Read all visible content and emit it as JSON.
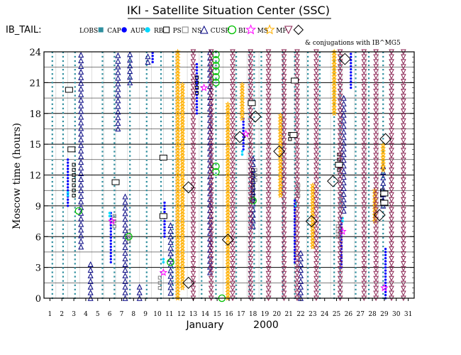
{
  "header": {
    "title": "IKI - Satellite Situation Center (SSC)",
    "region_label": "IB_TAIL:",
    "conjugation_note": "& conjugations with IB^MG5"
  },
  "legend": [
    {
      "label": "LOBS",
      "symbol": "square",
      "color": "#2f8f9f"
    },
    {
      "label": "CAP",
      "symbol": "dot",
      "color": "#0000ff"
    },
    {
      "label": "AUP",
      "symbol": "dot",
      "color": "#00d8ff"
    },
    {
      "label": "RB",
      "symbol": "square-open",
      "color": "#000000"
    },
    {
      "label": "PS",
      "symbol": "square-open",
      "color": "#808080"
    },
    {
      "label": "NS",
      "symbol": "triangle",
      "color": "#000080"
    },
    {
      "label": "CUSP",
      "symbol": "circle",
      "color": "#00c000"
    },
    {
      "label": "BL",
      "symbol": "star",
      "color": "#ff00ff"
    },
    {
      "label": "MS",
      "symbol": "star",
      "color": "#ffb000"
    },
    {
      "label": "MP",
      "symbol": "triangle-down",
      "color": "#8b2252"
    },
    {
      "label": "",
      "symbol": "diamond",
      "color": "#000000"
    }
  ],
  "chart_data": {
    "type": "scatter",
    "title": "IKI - Satellite Situation Center (SSC)",
    "xlabel": "January",
    "xlabel_year": "2000",
    "ylabel": "Moscow time (hours)",
    "xlim": [
      1,
      31
    ],
    "ylim": [
      0,
      24
    ],
    "x_ticks": [
      "1",
      "2",
      "3",
      "4",
      "5",
      "6",
      "7",
      "8",
      "9",
      "10",
      "11",
      "12",
      "13",
      "14",
      "15",
      "16",
      "17",
      "18",
      "19",
      "20",
      "21",
      "22",
      "23",
      "24",
      "25",
      "26",
      "27",
      "28",
      "29",
      "30",
      "31"
    ],
    "y_ticks": [
      "0",
      "3",
      "6",
      "9",
      "12",
      "15",
      "18",
      "21",
      "24"
    ],
    "grid": "horizontal-every-1.5h",
    "series": [
      {
        "name": "LOBS",
        "segments": [
          [
            1.2,
            0.0,
            24.0
          ],
          [
            2.1,
            0.0,
            24.0
          ],
          [
            3.1,
            0.0,
            24.0
          ],
          [
            5.4,
            0.0,
            24.0
          ],
          [
            6.4,
            0.0,
            24.0
          ],
          [
            7.7,
            0.0,
            24.0
          ],
          [
            9.1,
            0.0,
            24.0
          ],
          [
            10.3,
            0.0,
            24.0
          ],
          [
            11.3,
            0.0,
            24.0
          ],
          [
            13.7,
            0.0,
            24.0
          ],
          [
            14.9,
            0.0,
            24.0
          ],
          [
            16.6,
            0.0,
            24.0
          ],
          [
            17.7,
            0.0,
            24.0
          ],
          [
            18.1,
            0.0,
            24.0
          ],
          [
            18.7,
            0.0,
            24.0
          ],
          [
            20.5,
            0.0,
            24.0
          ],
          [
            21.5,
            0.0,
            24.0
          ],
          [
            22.6,
            0.0,
            24.0
          ],
          [
            23.6,
            0.0,
            24.0
          ],
          [
            24.8,
            0.0,
            24.0
          ],
          [
            25.3,
            0.0,
            24.0
          ],
          [
            26.6,
            0.0,
            24.0
          ],
          [
            27.7,
            0.0,
            24.0
          ],
          [
            28.9,
            0.0,
            24.0
          ]
        ]
      },
      {
        "name": "CAP",
        "segments": [
          [
            2.5,
            9.0,
            13.5
          ],
          [
            6.1,
            3.5,
            8.5
          ],
          [
            9.6,
            23.0,
            24.0
          ],
          [
            10.6,
            6.0,
            9.5
          ],
          [
            13.3,
            18.0,
            23.0
          ],
          [
            17.2,
            14.5,
            17.5
          ],
          [
            21.5,
            3.5,
            9.5
          ],
          [
            25.4,
            3.0,
            8.0
          ],
          [
            26.2,
            20.5,
            24.0
          ],
          [
            29.1,
            0.0,
            5.0
          ]
        ]
      },
      {
        "name": "AUP",
        "segments": [
          [
            2.5,
            10.0,
            10.5
          ],
          [
            6.0,
            8.0,
            8.5
          ],
          [
            10.5,
            3.5,
            4.0
          ],
          [
            17.1,
            14.0,
            14.5
          ],
          [
            21.6,
            9.0,
            9.5
          ],
          [
            25.5,
            7.5,
            8.0
          ]
        ]
      },
      {
        "name": "RB",
        "segments": [
          [
            3.0,
            10.0,
            13.0
          ],
          [
            13.3,
            20.0,
            21.5
          ],
          [
            18.0,
            9.5,
            12.5
          ],
          [
            21.1,
            15.5,
            16.0
          ],
          [
            25.2,
            12.5,
            14.0
          ],
          [
            28.8,
            9.5,
            10.5
          ]
        ]
      },
      {
        "name": "PS",
        "segments": [
          [
            6.4,
            7.0,
            8.0
          ],
          [
            7.6,
            5.5,
            6.5
          ],
          [
            10.2,
            1.0,
            2.0
          ],
          [
            18.2,
            11.5,
            12.5
          ],
          [
            21.8,
            10.0,
            11.0
          ],
          [
            25.1,
            6.0,
            7.0
          ]
        ]
      },
      {
        "name": "NS",
        "segments": [
          [
            3.6,
            5.0,
            24.0
          ],
          [
            4.4,
            0.0,
            3.5
          ],
          [
            6.7,
            16.5,
            24.0
          ],
          [
            7.3,
            0.0,
            10.0
          ],
          [
            7.7,
            21.0,
            24.0
          ],
          [
            8.5,
            0.0,
            1.5
          ],
          [
            9.2,
            23.0,
            24.0
          ],
          [
            11.1,
            0.5,
            7.5
          ],
          [
            14.4,
            2.5,
            24.0
          ],
          [
            18.0,
            7.0,
            14.0
          ],
          [
            22.0,
            0.0,
            4.5
          ],
          [
            25.6,
            8.5,
            20.0
          ],
          [
            28.9,
            9.0,
            13.0
          ]
        ]
      },
      {
        "name": "CUSP",
        "segments": [
          [
            14.9,
            21.0,
            24.0
          ],
          [
            14.9,
            12.3,
            13.3
          ],
          [
            15.4,
            0.0,
            0.3
          ],
          [
            7.6,
            6.0,
            6.5
          ],
          [
            11.1,
            3.5,
            4.0
          ],
          [
            3.4,
            8.5,
            9.0
          ],
          [
            18.0,
            9.5,
            10.0
          ]
        ]
      },
      {
        "name": "BL",
        "segments": [
          [
            6.2,
            7.5,
            8.0
          ],
          [
            10.5,
            2.5,
            3.0
          ],
          [
            13.9,
            20.5,
            21.0
          ],
          [
            17.4,
            16.0,
            16.5
          ],
          [
            25.5,
            6.5,
            7.0
          ],
          [
            29.0,
            1.0,
            1.5
          ]
        ]
      },
      {
        "name": "MS",
        "segments": [
          [
            11.7,
            0.0,
            24.0
          ],
          [
            12.1,
            1.0,
            21.0
          ],
          [
            15.9,
            0.0,
            19.0
          ],
          [
            17.1,
            17.5,
            21.0
          ],
          [
            20.3,
            10.0,
            18.0
          ],
          [
            23.0,
            5.0,
            11.0
          ],
          [
            24.8,
            18.0,
            24.0
          ],
          [
            28.2,
            7.5,
            10.5
          ],
          [
            28.9,
            12.5,
            15.0
          ]
        ]
      },
      {
        "name": "MP",
        "segments": [
          [
            13.0,
            0.0,
            24.0
          ],
          [
            14.5,
            0.0,
            24.0
          ],
          [
            16.3,
            0.0,
            24.0
          ],
          [
            19.3,
            0.0,
            24.0
          ],
          [
            20.6,
            0.0,
            24.0
          ],
          [
            21.7,
            0.0,
            24.0
          ],
          [
            23.3,
            0.0,
            24.0
          ],
          [
            25.3,
            0.0,
            24.0
          ],
          [
            27.3,
            0.0,
            24.0
          ],
          [
            28.3,
            0.0,
            24.0
          ],
          [
            29.6,
            0.0,
            24.0
          ],
          [
            30.6,
            0.0,
            24.0
          ],
          [
            17.8,
            0.0,
            24.0
          ]
        ]
      },
      {
        "name": "conjugation",
        "points": [
          [
            12.6,
            10.8
          ],
          [
            12.6,
            1.5
          ],
          [
            15.9,
            5.7
          ],
          [
            16.9,
            15.7
          ],
          [
            18.2,
            17.7
          ],
          [
            20.2,
            14.3
          ],
          [
            22.9,
            7.5
          ],
          [
            24.7,
            11.4
          ],
          [
            25.7,
            23.3
          ],
          [
            28.6,
            8.1
          ],
          [
            29.1,
            15.5
          ]
        ]
      },
      {
        "name": "RB-boxes",
        "points": [
          [
            2.6,
            20.3
          ],
          [
            2.8,
            14.5
          ],
          [
            6.5,
            11.3
          ],
          [
            10.5,
            13.7
          ],
          [
            10.5,
            8.0
          ],
          [
            17.9,
            19.0
          ],
          [
            21.5,
            21.2
          ],
          [
            21.4,
            15.9
          ],
          [
            25.2,
            13.0
          ],
          [
            29.0,
            10.2
          ],
          [
            29.0,
            9.3
          ]
        ]
      }
    ]
  }
}
